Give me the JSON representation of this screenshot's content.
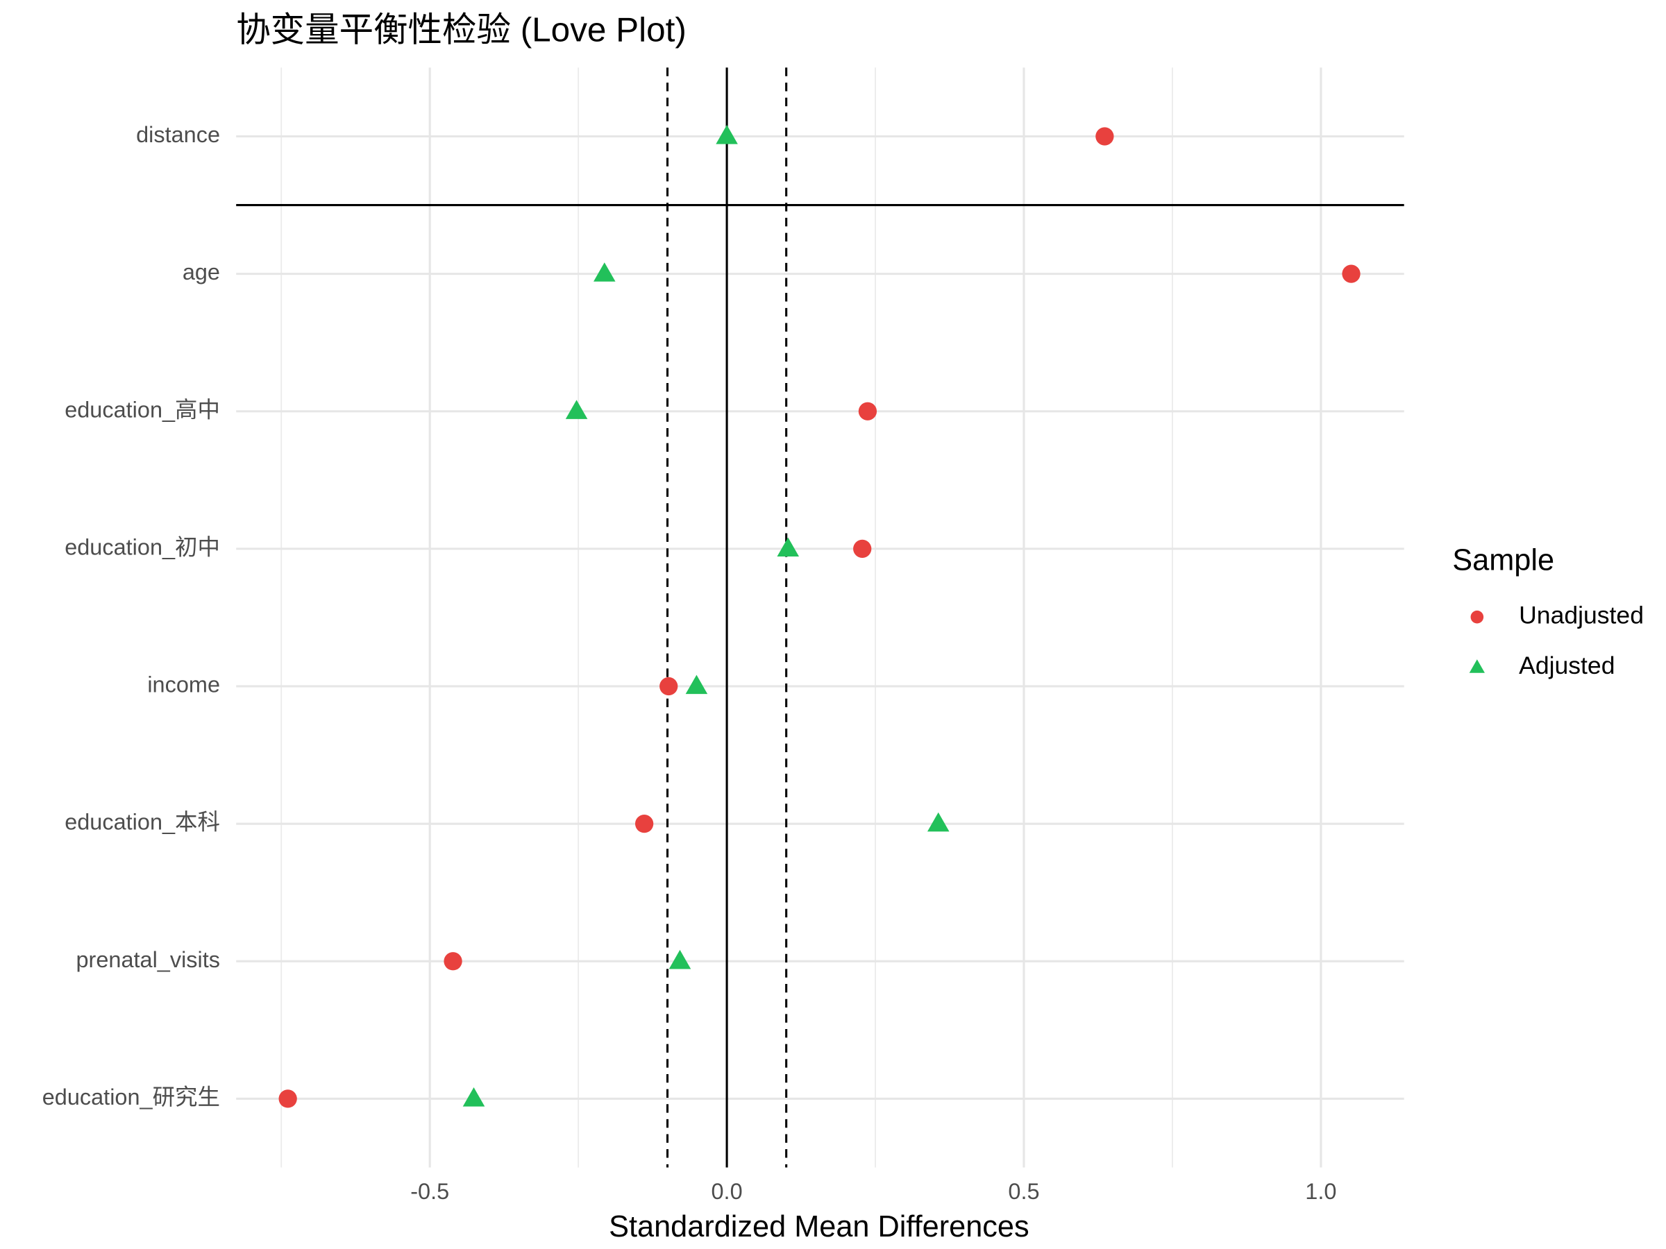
{
  "chart_data": {
    "type": "dot",
    "title": "协变量平衡性检验 (Love Plot)",
    "x_label": "Standardized Mean Differences",
    "categories": [
      "distance",
      "age",
      "education_高中",
      "education_初中",
      "income",
      "education_本科",
      "prenatal_visits",
      "education_研究生"
    ],
    "series": [
      {
        "name": "Unadjusted",
        "color": "#e8413e",
        "marker": "circle",
        "values": [
          0.636,
          1.051,
          0.237,
          0.228,
          -0.098,
          -0.139,
          -0.461,
          -0.739
        ]
      },
      {
        "name": "Adjusted",
        "color": "#22c05a",
        "marker": "triangle",
        "values": [
          0.0,
          -0.206,
          -0.253,
          0.103,
          -0.051,
          0.356,
          -0.079,
          -0.426
        ]
      }
    ],
    "xlim": [
      -0.826,
      1.14
    ],
    "xticks": [
      {
        "value": -0.5,
        "label": "-0.5"
      },
      {
        "value": 0,
        "label": "0.0"
      },
      {
        "value": 0.5,
        "label": "0.5"
      },
      {
        "value": 1,
        "label": "1.0"
      }
    ],
    "xminor_ticks": [
      -0.75,
      -0.25,
      0.25,
      0.75
    ],
    "reference_lines": [
      {
        "value": 0,
        "style": "solid"
      },
      {
        "value": -0.1,
        "style": "dashed"
      },
      {
        "value": 0.1,
        "style": "dashed"
      }
    ],
    "legend_title": "Sample",
    "legend_position": "right",
    "grid": true
  }
}
